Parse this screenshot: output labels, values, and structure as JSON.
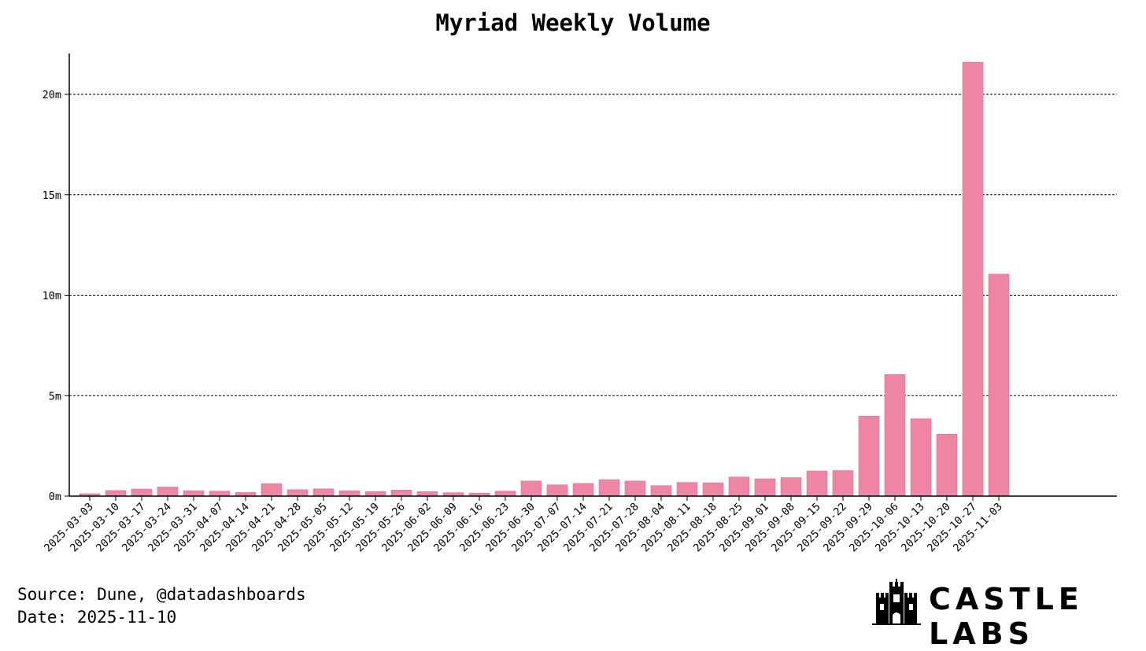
{
  "chart_data": {
    "type": "bar",
    "title": "Myriad Weekly Volume",
    "xlabel": "",
    "ylabel": "",
    "bar_color": "#ee85a2",
    "categories": [
      "2025-03-03",
      "2025-03-10",
      "2025-03-17",
      "2025-03-24",
      "2025-03-31",
      "2025-04-07",
      "2025-04-14",
      "2025-04-21",
      "2025-04-28",
      "2025-05-05",
      "2025-05-12",
      "2025-05-19",
      "2025-05-26",
      "2025-06-02",
      "2025-06-09",
      "2025-06-16",
      "2025-06-23",
      "2025-06-30",
      "2025-07-07",
      "2025-07-14",
      "2025-07-21",
      "2025-07-28",
      "2025-08-04",
      "2025-08-11",
      "2025-08-18",
      "2025-08-25",
      "2025-09-01",
      "2025-09-08",
      "2025-09-15",
      "2025-09-22",
      "2025-09-29",
      "2025-10-06",
      "2025-10-13",
      "2025-10-20",
      "2025-10-27",
      "2025-11-03"
    ],
    "values": [
      0.12,
      0.28,
      0.35,
      0.45,
      0.27,
      0.25,
      0.18,
      0.62,
      0.32,
      0.36,
      0.27,
      0.23,
      0.3,
      0.22,
      0.17,
      0.15,
      0.25,
      0.75,
      0.56,
      0.63,
      0.82,
      0.75,
      0.52,
      0.68,
      0.66,
      0.95,
      0.86,
      0.92,
      1.25,
      1.27,
      3.98,
      6.05,
      3.85,
      3.08,
      21.6,
      11.05
    ],
    "unit": "m",
    "ylim": [
      0,
      22
    ],
    "yticks": [
      {
        "value": 0,
        "label": "0m"
      },
      {
        "value": 5,
        "label": "5m"
      },
      {
        "value": 10,
        "label": "10m"
      },
      {
        "value": 15,
        "label": "15m"
      },
      {
        "value": 20,
        "label": "20m"
      }
    ],
    "grid": "horizontal dashed",
    "legend": "none"
  },
  "footer": {
    "source": "Source: Dune, @datadashboards",
    "date": "Date: 2025-11-10"
  },
  "logo": {
    "text": "CASTLE LABS",
    "icon": "castle-icon"
  }
}
